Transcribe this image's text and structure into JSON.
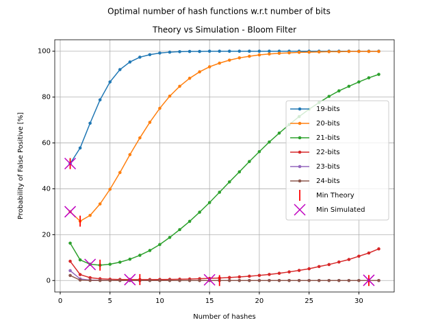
{
  "chart_data": {
    "type": "line",
    "suptitle": "Optimal number of hash functions w.r.t number of bits",
    "title": "Theory vs Simulation - Bloom Filter",
    "xlabel": "Number of hashes",
    "ylabel": "Probability of False Positive [%]",
    "x": [
      1,
      2,
      3,
      4,
      5,
      6,
      7,
      8,
      9,
      10,
      11,
      12,
      13,
      14,
      15,
      16,
      17,
      18,
      19,
      20,
      21,
      22,
      23,
      24,
      25,
      26,
      27,
      28,
      29,
      30,
      31,
      32
    ],
    "series": [
      {
        "name": "19-bits",
        "color": "#1f77b4",
        "values": [
          51.0,
          57.8,
          68.6,
          78.8,
          86.6,
          92.0,
          95.3,
          97.4,
          98.5,
          99.2,
          99.6,
          99.8,
          99.9,
          99.9,
          100,
          100,
          100,
          100,
          100,
          100,
          100,
          100,
          100,
          100,
          100,
          100,
          100,
          100,
          100,
          100,
          100,
          100
        ]
      },
      {
        "name": "20-bits",
        "color": "#ff7f0e",
        "values": [
          30.0,
          25.9,
          28.4,
          33.4,
          39.8,
          47.1,
          54.9,
          62.2,
          69.0,
          75.1,
          80.4,
          84.7,
          88.2,
          91.0,
          93.2,
          94.8,
          96.1,
          97.1,
          97.8,
          98.4,
          98.8,
          99.1,
          99.3,
          99.5,
          99.6,
          99.7,
          99.8,
          99.8,
          99.9,
          99.9,
          99.9,
          99.9
        ]
      },
      {
        "name": "21-bits",
        "color": "#2ca02c",
        "values": [
          16.3,
          9.0,
          7.1,
          6.7,
          7.1,
          8.0,
          9.3,
          11.0,
          13.1,
          15.7,
          18.8,
          22.2,
          25.8,
          29.8,
          34.0,
          38.5,
          43.0,
          47.4,
          51.9,
          56.2,
          60.4,
          64.3,
          68.0,
          71.5,
          74.7,
          77.6,
          80.3,
          82.7,
          84.7,
          86.6,
          88.4,
          89.9
        ]
      },
      {
        "name": "22-bits",
        "color": "#d62728",
        "values": [
          8.4,
          2.6,
          1.23,
          0.77,
          0.57,
          0.47,
          0.43,
          0.42,
          0.43,
          0.46,
          0.51,
          0.58,
          0.66,
          0.78,
          0.93,
          1.09,
          1.32,
          1.59,
          1.88,
          2.23,
          2.65,
          3.16,
          3.76,
          4.41,
          5.14,
          6.1,
          6.97,
          8.06,
          9.17,
          10.6,
          12.0,
          13.8
        ]
      },
      {
        "name": "23-bits",
        "color": "#9467bd",
        "values": [
          4.3,
          0.71,
          0.19,
          0.067,
          0.03,
          0.016,
          0.01,
          0.007,
          0.005,
          0.004,
          0.003,
          0.003,
          0.002,
          0.002,
          0.002,
          0.002,
          0.002,
          0.002,
          0.002,
          0.002,
          0.002,
          0.002,
          0.003,
          0.003,
          0.003,
          0.004,
          0.004,
          0.005,
          0.006,
          0.007,
          0.008,
          0.01
        ]
      },
      {
        "name": "24-bits",
        "color": "#8c564b",
        "values": [
          2.2,
          0.19,
          0.027,
          0.005,
          0.001,
          0,
          0,
          0,
          0,
          0,
          0,
          0,
          0,
          0,
          0,
          0,
          0,
          0,
          0,
          0,
          0,
          0,
          0,
          0,
          0,
          0,
          0,
          0,
          0,
          0,
          0,
          0
        ]
      },
      {
        "name": "Min Theory",
        "color": "#ff0000",
        "marker": "|",
        "x": [
          1,
          2,
          4,
          8,
          16,
          31
        ],
        "values": [
          51.0,
          25.9,
          6.7,
          0.42,
          0.002,
          0
        ]
      },
      {
        "name": "Min Simulated",
        "color": "#bf00bf",
        "marker": "x",
        "x": [
          1,
          1,
          3,
          7,
          15,
          31
        ],
        "values": [
          51.0,
          30.0,
          7.0,
          0.4,
          0.3,
          0.1
        ]
      }
    ],
    "xlim": [
      -0.55,
      33.55
    ],
    "ylim": [
      -5,
      105
    ],
    "xticks": [
      0,
      5,
      10,
      15,
      20,
      25,
      30
    ],
    "yticks": [
      0,
      20,
      40,
      60,
      80,
      100
    ],
    "grid": true,
    "legend": "center right"
  }
}
